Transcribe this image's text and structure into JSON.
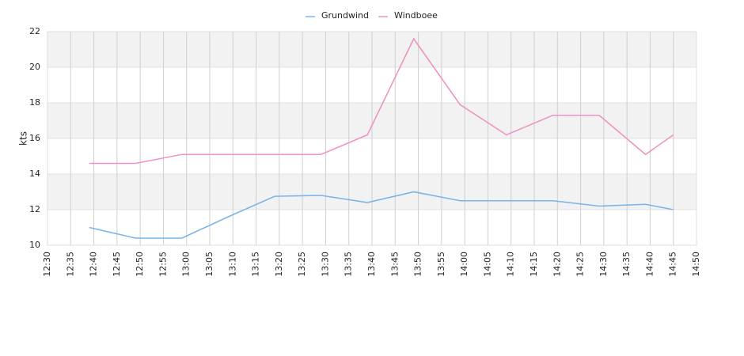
{
  "chart_data": {
    "type": "line",
    "y_label": "kts",
    "x": [
      "12:39",
      "12:49",
      "12:59",
      "13:09",
      "13:19",
      "13:29",
      "13:39",
      "13:49",
      "13:59",
      "14:09",
      "14:19",
      "14:29",
      "14:39",
      "14:45"
    ],
    "series": [
      {
        "name": "Grundwind",
        "color": "#7ab4ea",
        "values": [
          11.0,
          10.4,
          10.4,
          11.6,
          12.75,
          12.8,
          12.4,
          13.0,
          12.5,
          12.5,
          12.5,
          12.2,
          12.3,
          12.0
        ]
      },
      {
        "name": "Windboee",
        "color": "#ee94c4",
        "values": [
          14.6,
          14.6,
          15.1,
          15.1,
          15.1,
          15.1,
          16.2,
          21.6,
          17.9,
          16.2,
          17.3,
          17.3,
          15.1,
          16.2
        ]
      }
    ],
    "xlim": [
      "12:30",
      "14:50"
    ],
    "xticks": [
      "12:30",
      "12:35",
      "12:40",
      "12:45",
      "12:50",
      "12:55",
      "13:00",
      "13:05",
      "13:10",
      "13:15",
      "13:20",
      "13:25",
      "13:30",
      "13:35",
      "13:40",
      "13:45",
      "13:50",
      "13:55",
      "14:00",
      "14:05",
      "14:10",
      "14:15",
      "14:20",
      "14:25",
      "14:30",
      "14:35",
      "14:40",
      "14:45",
      "14:50"
    ],
    "ylim": [
      10,
      22
    ],
    "yticks": [
      10,
      12,
      14,
      16,
      18,
      20,
      22
    ],
    "grid": true
  }
}
